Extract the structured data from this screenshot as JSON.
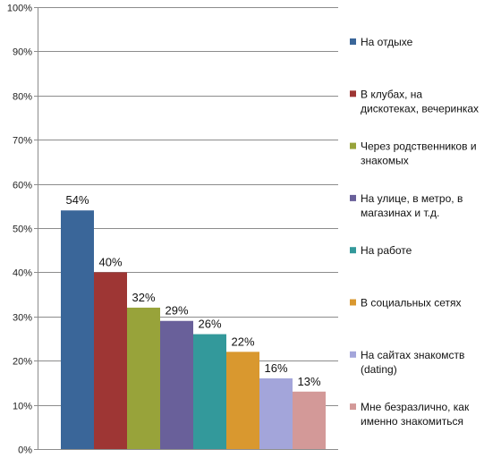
{
  "chart_data": {
    "type": "bar",
    "title": "",
    "xlabel": "",
    "ylabel": "",
    "ylim": [
      0,
      100
    ],
    "yticks": [
      "0%",
      "10%",
      "20%",
      "30%",
      "40%",
      "50%",
      "60%",
      "70%",
      "80%",
      "90%",
      "100%"
    ],
    "grid": true,
    "legend_position": "right",
    "series": [
      {
        "name": "На отдыхе",
        "value": 54,
        "label": "54%",
        "color": "#3A6699",
        "legend_lines": [
          "На отдыхе"
        ]
      },
      {
        "name": "В клубах, на дискотеках, вечеринках",
        "value": 40,
        "label": "40%",
        "color": "#9E3634",
        "legend_lines": [
          "В клубах, на",
          "дискотеках, вечеринках"
        ]
      },
      {
        "name": "Через родственников и знакомых",
        "value": 32,
        "label": "32%",
        "color": "#98A33A",
        "legend_lines": [
          "Через родственников и",
          "знакомых"
        ]
      },
      {
        "name": "На улице, в метро, в магазинах и т.д.",
        "value": 29,
        "label": "29%",
        "color": "#69609A",
        "legend_lines": [
          "На улице, в метро, в",
          "магазинах и т.д."
        ]
      },
      {
        "name": "На работе",
        "value": 26,
        "label": "26%",
        "color": "#33999B",
        "legend_lines": [
          "На работе"
        ]
      },
      {
        "name": "В социальных сетях",
        "value": 22,
        "label": "22%",
        "color": "#D9982F",
        "legend_lines": [
          "В социальных сетях"
        ]
      },
      {
        "name": "На сайтах знакомств (dating)",
        "value": 16,
        "label": "16%",
        "color": "#A3A5DA",
        "legend_lines": [
          "На сайтах знакомств",
          "(dating)"
        ]
      },
      {
        "name": "Мне безразлично, как именно знакомиться",
        "value": 13,
        "label": "13%",
        "color": "#D39998",
        "legend_lines": [
          "Мне безразлично, как",
          "именно знакомиться"
        ]
      }
    ]
  }
}
